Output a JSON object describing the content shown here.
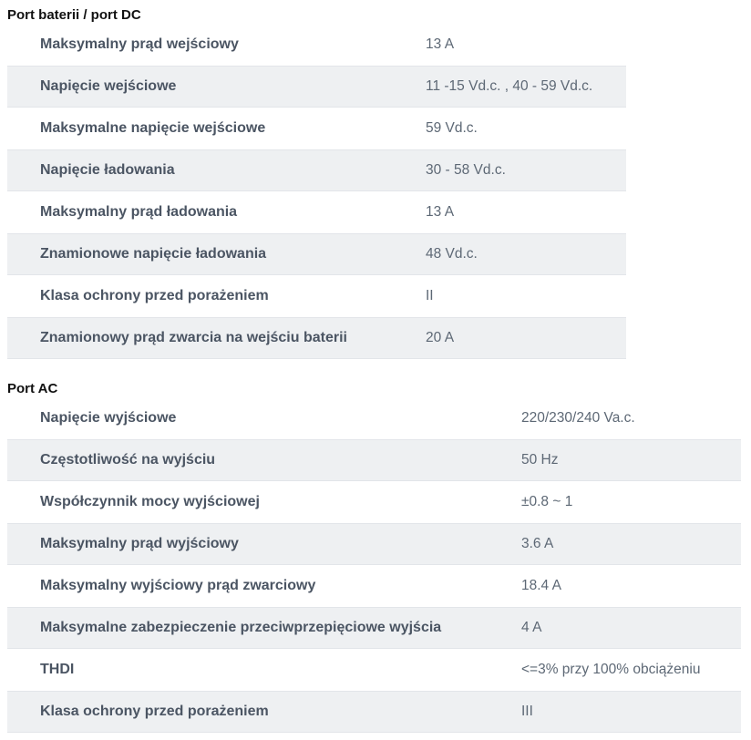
{
  "sections": [
    {
      "title": "Port baterii / port DC",
      "rows": [
        {
          "label": "Maksymalny prąd wejściowy",
          "value": "13 A"
        },
        {
          "label": "Napięcie wejściowe",
          "value": "11 -15 Vd.c. , 40 - 59 Vd.c."
        },
        {
          "label": "Maksymalne napięcie wejściowe",
          "value": "59 Vd.c."
        },
        {
          "label": "Napięcie ładowania",
          "value": "30 - 58 Vd.c."
        },
        {
          "label": "Maksymalny prąd ładowania",
          "value": "13 A"
        },
        {
          "label": "Znamionowe napięcie ładowania",
          "value": "48 Vd.c."
        },
        {
          "label": "Klasa ochrony przed porażeniem",
          "value": "II"
        },
        {
          "label": "Znamionowy prąd zwarcia na wejściu baterii",
          "value": "20 A"
        }
      ]
    },
    {
      "title": "Port AC",
      "rows": [
        {
          "label": "Napięcie wyjściowe",
          "value": "220/230/240 Va.c."
        },
        {
          "label": "Częstotliwość na wyjściu",
          "value": "50 Hz"
        },
        {
          "label": "Współczynnik mocy wyjściowej",
          "value": "±0.8 ~ 1"
        },
        {
          "label": "Maksymalny prąd wyjściowy",
          "value": "3.6 A"
        },
        {
          "label": "Maksymalny wyjściowy prąd zwarciowy",
          "value": "18.4 A"
        },
        {
          "label": "Maksymalne zabezpieczenie przeciwprzepięciowe wyjścia",
          "value": "4 A"
        },
        {
          "label": "THDI",
          "value": "<=3% przy 100% obciążeniu"
        },
        {
          "label": "Klasa ochrony przed porażeniem",
          "value": "III"
        }
      ]
    }
  ],
  "colors": {
    "stripe_bg": "#eef0f2",
    "stripe_border": "#e2e5e9",
    "label_text": "#4b5563",
    "value_text": "#5d6875",
    "heading_text": "#111111",
    "page_bg": "#ffffff"
  }
}
